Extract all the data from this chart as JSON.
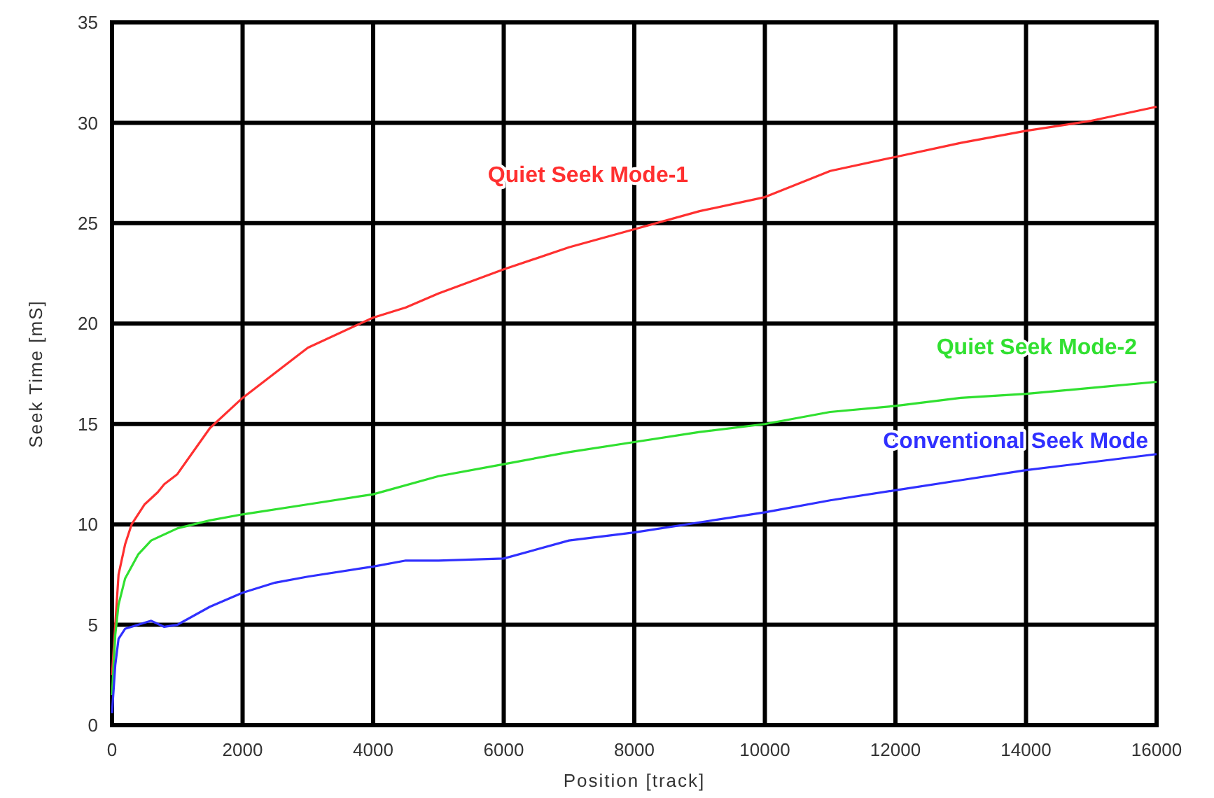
{
  "chart_data": {
    "type": "line",
    "xlabel": "Position [track]",
    "ylabel": "Seek Time [mS]",
    "xlim": [
      0,
      16000
    ],
    "xticks": [
      0,
      2000,
      4000,
      6000,
      8000,
      10000,
      12000,
      14000,
      16000
    ],
    "ylim": [
      0,
      35
    ],
    "yticks": [
      0,
      5,
      10,
      15,
      20,
      25,
      30,
      35
    ],
    "grid": true,
    "line_style": "solid",
    "series": [
      {
        "name": "Quiet Seek Mode-1",
        "color": "#ff3030",
        "x": [
          0,
          50,
          100,
          200,
          300,
          500,
          700,
          800,
          1000,
          1500,
          2000,
          3000,
          4000,
          4500,
          5000,
          6000,
          7000,
          8000,
          9000,
          10000,
          11000,
          12000,
          13000,
          14000,
          15000,
          16000
        ],
        "values": [
          2.5,
          5,
          7.5,
          9,
          10,
          11,
          11.6,
          12,
          12.5,
          14.8,
          16.3,
          18.8,
          20.3,
          20.8,
          21.5,
          22.7,
          23.8,
          24.7,
          25.6,
          26.3,
          27.6,
          28.3,
          29,
          29.6,
          30.1,
          30.8
        ]
      },
      {
        "name": "Quiet Seek Mode-2",
        "color": "#30e030",
        "x": [
          0,
          50,
          100,
          200,
          400,
          600,
          1000,
          1500,
          2000,
          3000,
          4000,
          5000,
          6000,
          7000,
          8000,
          9000,
          10000,
          11000,
          12000,
          13000,
          14000,
          15000,
          16000
        ],
        "values": [
          1.5,
          4.5,
          6,
          7.3,
          8.5,
          9.2,
          9.8,
          10.2,
          10.5,
          11,
          11.5,
          12.4,
          13,
          13.6,
          14.1,
          14.6,
          15,
          15.6,
          15.9,
          16.3,
          16.5,
          16.8,
          17.1
        ]
      },
      {
        "name": "Conventional Seek Mode",
        "color": "#3030ff",
        "x": [
          0,
          50,
          100,
          200,
          400,
          600,
          800,
          1000,
          1500,
          2000,
          2500,
          3000,
          4000,
          4500,
          5000,
          6000,
          7000,
          8000,
          9000,
          10000,
          11000,
          12000,
          13000,
          14000,
          15000,
          16000
        ],
        "values": [
          0.6,
          3,
          4.3,
          4.8,
          5,
          5.2,
          4.9,
          5,
          5.9,
          6.6,
          7.1,
          7.4,
          7.9,
          8.2,
          8.2,
          8.3,
          9.2,
          9.6,
          10.1,
          10.6,
          11.2,
          11.7,
          12.2,
          12.7,
          13.1,
          13.5
        ]
      }
    ]
  }
}
